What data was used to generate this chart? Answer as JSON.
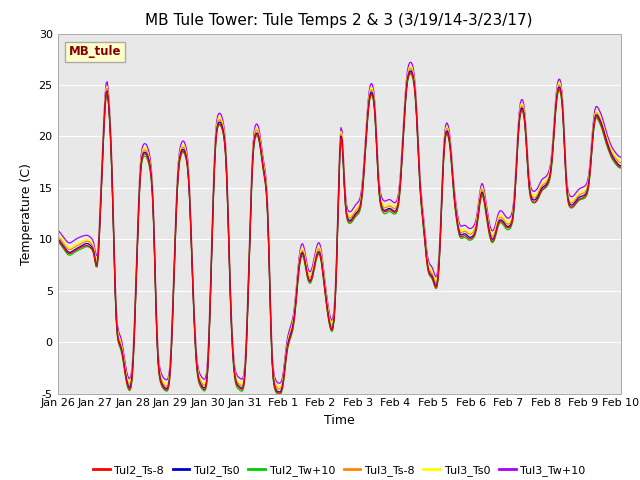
{
  "title": "MB Tule Tower: Tule Temps 2 & 3 (3/19/14-3/23/17)",
  "xlabel": "Time",
  "ylabel": "Temperature (C)",
  "ylim": [
    -5,
    30
  ],
  "series_colors": {
    "Tul2_Ts-8": "#ff0000",
    "Tul2_Ts0": "#0000cc",
    "Tul2_Tw+10": "#00cc00",
    "Tul3_Ts-8": "#ff8800",
    "Tul3_Ts0": "#ffff00",
    "Tul3_Tw+10": "#aa00ff"
  },
  "xtick_labels": [
    "Jan 26",
    "Jan 27",
    "Jan 28",
    "Jan 29",
    "Jan 30",
    "Jan 31",
    "Feb 1",
    "Feb 2",
    "Feb 3",
    "Feb 4",
    "Feb 5",
    "Feb 6",
    "Feb 7",
    "Feb 8",
    "Feb 9",
    "Feb 10"
  ],
  "ytick_labels": [
    -5,
    0,
    5,
    10,
    15,
    20,
    25,
    30
  ],
  "annotation_text": "MB_tule",
  "fig_bg": "#ffffff",
  "plot_bg": "#e8e8e8",
  "grid_color": "#ffffff",
  "title_fontsize": 11,
  "label_fontsize": 9,
  "tick_fontsize": 8
}
